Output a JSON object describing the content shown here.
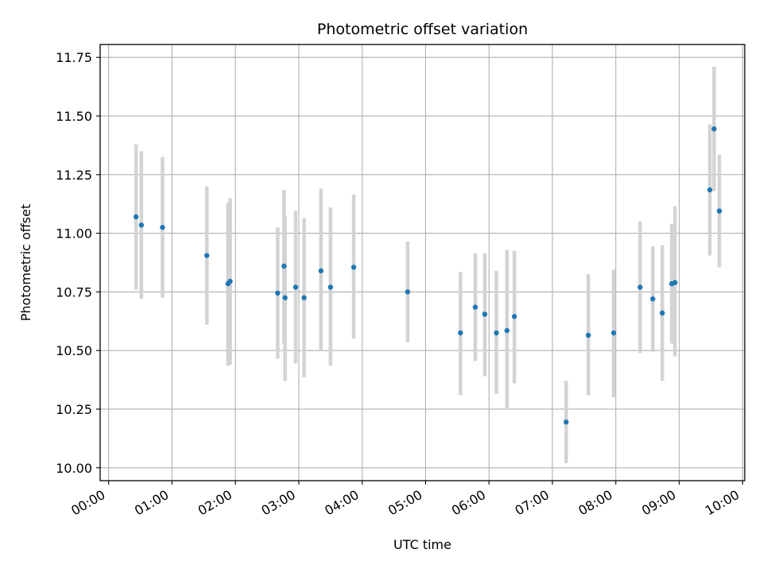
{
  "chart_data": {
    "type": "scatter",
    "title": "Photometric offset variation",
    "xlabel": "UTC time",
    "ylabel": "Photometric offset",
    "xlim": [
      "-00:08",
      "10:02"
    ],
    "ylim": [
      9.945,
      11.805
    ],
    "grid": true,
    "x_ticks": [
      "00:00",
      "01:00",
      "02:00",
      "03:00",
      "04:00",
      "05:00",
      "06:00",
      "07:00",
      "08:00",
      "09:00",
      "10:00"
    ],
    "y_ticks": [
      "10.00",
      "10.25",
      "10.50",
      "10.75",
      "11.00",
      "11.25",
      "11.50",
      "11.75"
    ],
    "y_tick_values": [
      10.0,
      10.25,
      10.5,
      10.75,
      11.0,
      11.25,
      11.5,
      11.75
    ],
    "colors": {
      "point": "#1f77b4",
      "errorbar": "#d3d3d3",
      "grid": "#b0b0b0"
    },
    "series": [
      {
        "points": [
          {
            "x": "00:26",
            "y": 11.07,
            "err_low": 10.76,
            "err_high": 11.38
          },
          {
            "x": "00:31",
            "y": 11.035,
            "err_low": 10.72,
            "err_high": 11.35
          },
          {
            "x": "00:51",
            "y": 11.025,
            "err_low": 10.725,
            "err_high": 11.325
          },
          {
            "x": "01:33",
            "y": 10.905,
            "err_low": 10.61,
            "err_high": 11.2
          },
          {
            "x": "01:53",
            "y": 10.785,
            "err_low": 10.435,
            "err_high": 11.13
          },
          {
            "x": "01:55",
            "y": 10.795,
            "err_low": 10.44,
            "err_high": 11.15
          },
          {
            "x": "02:40",
            "y": 10.745,
            "err_low": 10.465,
            "err_high": 11.025
          },
          {
            "x": "02:46",
            "y": 10.86,
            "err_low": 10.53,
            "err_high": 11.185
          },
          {
            "x": "02:47",
            "y": 10.725,
            "err_low": 10.37,
            "err_high": 11.075
          },
          {
            "x": "02:57",
            "y": 10.77,
            "err_low": 10.445,
            "err_high": 11.095
          },
          {
            "x": "03:05",
            "y": 10.725,
            "err_low": 10.385,
            "err_high": 11.065
          },
          {
            "x": "03:21",
            "y": 10.84,
            "err_low": 10.5,
            "err_high": 11.19
          },
          {
            "x": "03:30",
            "y": 10.77,
            "err_low": 10.435,
            "err_high": 11.11
          },
          {
            "x": "03:52",
            "y": 10.855,
            "err_low": 10.55,
            "err_high": 11.165
          },
          {
            "x": "04:43",
            "y": 10.75,
            "err_low": 10.535,
            "err_high": 10.965
          },
          {
            "x": "05:33",
            "y": 10.575,
            "err_low": 10.31,
            "err_high": 10.835
          },
          {
            "x": "05:47",
            "y": 10.685,
            "err_low": 10.455,
            "err_high": 10.915
          },
          {
            "x": "05:56",
            "y": 10.655,
            "err_low": 10.39,
            "err_high": 10.915
          },
          {
            "x": "06:07",
            "y": 10.575,
            "err_low": 10.315,
            "err_high": 10.84
          },
          {
            "x": "06:17",
            "y": 10.585,
            "err_low": 10.25,
            "err_high": 10.93
          },
          {
            "x": "06:24",
            "y": 10.645,
            "err_low": 10.36,
            "err_high": 10.925
          },
          {
            "x": "07:13",
            "y": 10.195,
            "err_low": 10.02,
            "err_high": 10.37
          },
          {
            "x": "07:34",
            "y": 10.565,
            "err_low": 10.31,
            "err_high": 10.825
          },
          {
            "x": "07:58",
            "y": 10.575,
            "err_low": 10.3,
            "err_high": 10.845
          },
          {
            "x": "08:23",
            "y": 10.77,
            "err_low": 10.49,
            "err_high": 11.05
          },
          {
            "x": "08:35",
            "y": 10.72,
            "err_low": 10.495,
            "err_high": 10.945
          },
          {
            "x": "08:44",
            "y": 10.66,
            "err_low": 10.37,
            "err_high": 10.95
          },
          {
            "x": "08:53",
            "y": 10.785,
            "err_low": 10.53,
            "err_high": 11.04
          },
          {
            "x": "08:56",
            "y": 10.79,
            "err_low": 10.475,
            "err_high": 11.115
          },
          {
            "x": "09:29",
            "y": 11.185,
            "err_low": 10.905,
            "err_high": 11.465
          },
          {
            "x": "09:33",
            "y": 11.445,
            "err_low": 11.18,
            "err_high": 11.71
          },
          {
            "x": "09:38",
            "y": 11.095,
            "err_low": 10.855,
            "err_high": 11.335
          }
        ]
      }
    ]
  }
}
